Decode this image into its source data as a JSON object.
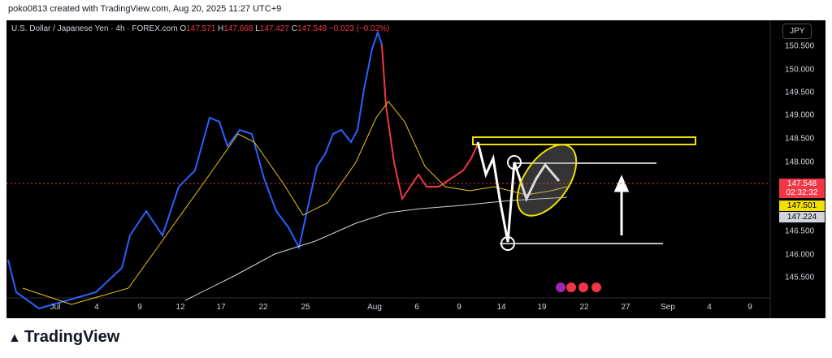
{
  "header": {
    "credit": "poko0813 created with TradingView.com, Aug 20, 2025 11:27 UTC+9"
  },
  "legend": {
    "symbol": "U.S. Dollar / Japanese Yen · 4h · FOREX.com",
    "open_label": "O",
    "open": "147.571",
    "high_label": "H",
    "high": "147.668",
    "low_label": "L",
    "low": "147.427",
    "close_label": "C",
    "close": "147.548",
    "change": "−0.023 (−0.02%)"
  },
  "currency_button": "JPY",
  "price_axis": [
    "150.500",
    "150.000",
    "149.500",
    "149.000",
    "148.500",
    "148.000",
    "146.500",
    "146.000",
    "145.500"
  ],
  "price_tags": {
    "last": "147.548",
    "countdown": "02:32:32",
    "ma_fast": "147.501",
    "ma_slow": "147.224"
  },
  "time_axis": [
    "Jul",
    "4",
    "9",
    "12",
    "17",
    "22",
    "25",
    "Aug",
    "6",
    "9",
    "14",
    "19",
    "22",
    "27",
    "Sep",
    "4",
    "9"
  ],
  "footer": {
    "logo": "TradingView"
  }
}
